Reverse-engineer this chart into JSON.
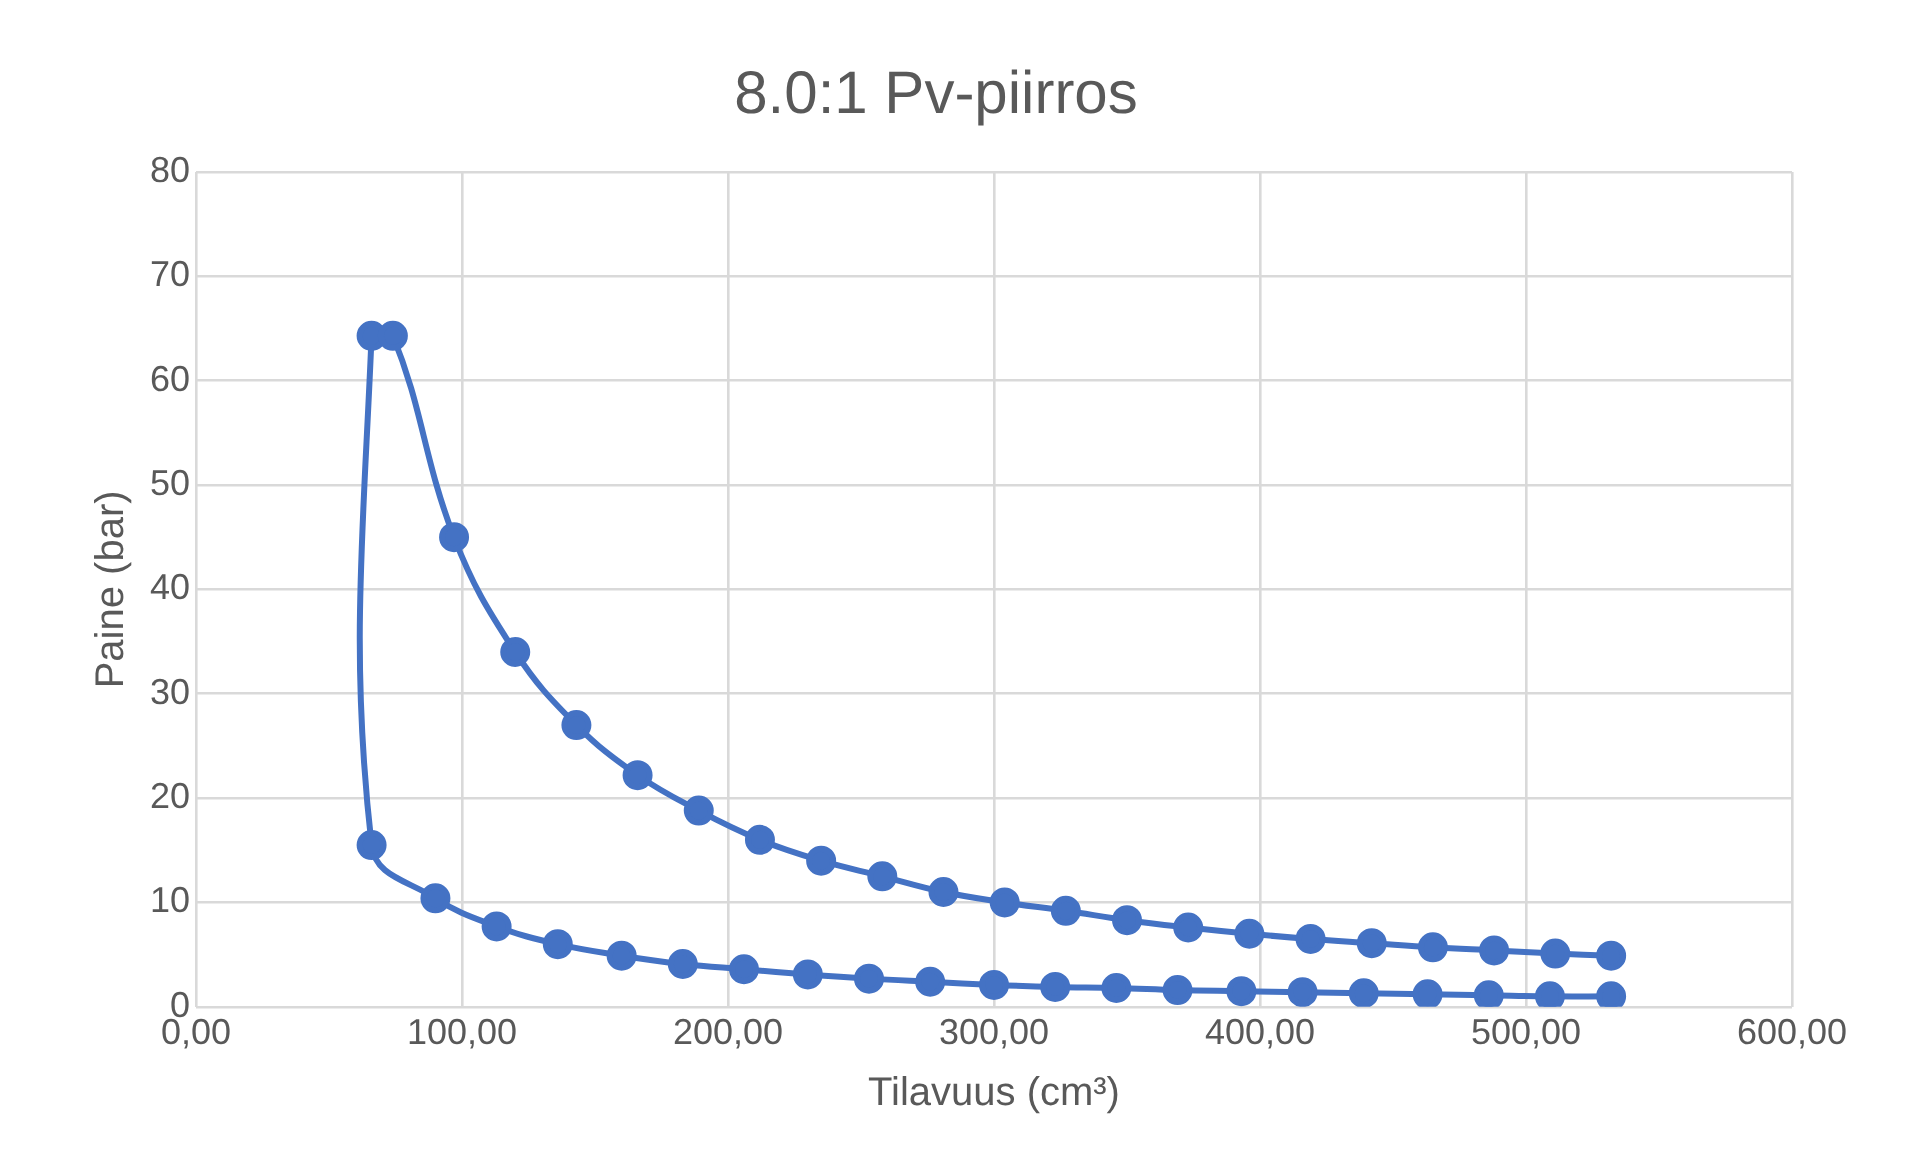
{
  "chart_data": {
    "type": "line",
    "title": "8.0:1 Pv-piirros",
    "xlabel": "Tilavuus (cm³)",
    "ylabel": "Paine (bar)",
    "series": [
      {
        "color": "#4472c4",
        "x": [
          532,
          509,
          486,
          463,
          439,
          416,
          393,
          369,
          346,
          323,
          300,
          276,
          253,
          230,
          206,
          183,
          160,
          136,
          113,
          90,
          66,
          66,
          74,
          97,
          120,
          143,
          166,
          189,
          212,
          235,
          258,
          281,
          304,
          327,
          350,
          373,
          396,
          419,
          442,
          465,
          488,
          511,
          532
        ],
        "values": [
          1.0,
          1.0,
          1.1,
          1.2,
          1.3,
          1.4,
          1.5,
          1.6,
          1.8,
          1.9,
          2.1,
          2.4,
          2.7,
          3.1,
          3.6,
          4.1,
          4.9,
          6.0,
          7.7,
          10.4,
          15.5,
          64.3,
          64.3,
          45,
          34,
          27,
          22.2,
          18.8,
          16,
          14,
          12.5,
          11,
          10,
          9.2,
          8.3,
          7.6,
          7.0,
          6.5,
          6.1,
          5.7,
          5.4,
          5.1,
          4.9
        ]
      }
    ],
    "xlim": [
      0,
      600
    ],
    "xticks": [
      {
        "value": 0,
        "label": "0,00"
      },
      {
        "value": 100,
        "label": "100,00"
      },
      {
        "value": 200,
        "label": "200,00"
      },
      {
        "value": 300,
        "label": "300,00"
      },
      {
        "value": 400,
        "label": "400,00"
      },
      {
        "value": 500,
        "label": "500,00"
      },
      {
        "value": 600,
        "label": "600,00"
      }
    ],
    "ylim": [
      0,
      80
    ],
    "yticks": [
      0,
      10,
      20,
      30,
      40,
      50,
      60,
      70,
      80
    ],
    "grid": true,
    "legend": false,
    "marker": "circle",
    "line_style": "solid"
  }
}
